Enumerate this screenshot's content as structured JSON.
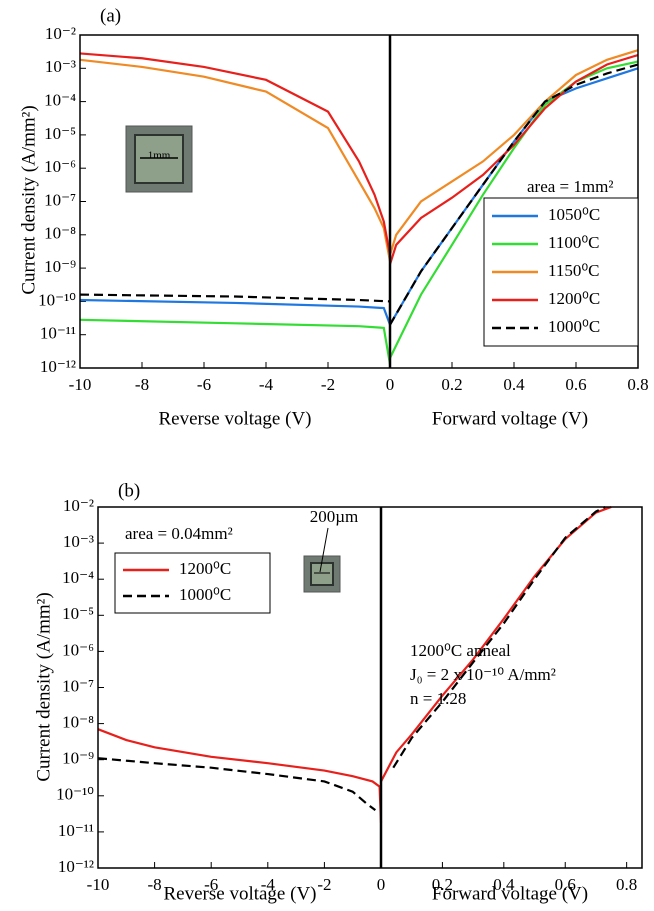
{
  "chart_data": [
    {
      "type": "line",
      "title": "(a)",
      "ylabel": "Current density (A/mm²)",
      "yscale": "log",
      "ylim": [
        1e-12,
        0.01
      ],
      "yticks": [
        {
          "value": 1e-12,
          "label": "10⁻¹²"
        },
        {
          "value": 1e-11,
          "label": "10⁻¹¹"
        },
        {
          "value": 1e-10,
          "label": "10⁻¹⁰"
        },
        {
          "value": 1e-09,
          "label": "10⁻⁹"
        },
        {
          "value": 1e-08,
          "label": "10⁻⁸"
        },
        {
          "value": 1e-07,
          "label": "10⁻⁷"
        },
        {
          "value": 1e-06,
          "label": "10⁻⁶"
        },
        {
          "value": 1e-05,
          "label": "10⁻⁵"
        },
        {
          "value": 0.0001,
          "label": "10⁻⁴"
        },
        {
          "value": 0.001,
          "label": "10⁻³"
        },
        {
          "value": 0.01,
          "label": "10⁻²"
        }
      ],
      "reverse_axis": {
        "xlabel": "Reverse voltage (V)",
        "xlim": [
          -10,
          0
        ],
        "xticks": [
          -10,
          -8,
          -6,
          -4,
          -2,
          0
        ]
      },
      "forward_axis": {
        "xlabel": "Forward voltage (V)",
        "xlim": [
          0,
          0.8
        ],
        "xticks": [
          0.2,
          0.4,
          0.6,
          0.8
        ]
      },
      "annotations": [
        "area = 1mm²",
        "1mm"
      ],
      "series": [
        {
          "name": "1050⁰C",
          "color": "#1f77e0",
          "dash": false,
          "reverse": {
            "x": [
              -10,
              -5,
              -1,
              -0.2,
              0
            ],
            "values": [
              1.1e-10,
              9e-11,
              7e-11,
              6.3e-11,
              2e-11
            ]
          },
          "forward": {
            "x": [
              0,
              0.1,
              0.2,
              0.3,
              0.4,
              0.5,
              0.6,
              0.7,
              0.8
            ],
            "values": [
              2e-11,
              8e-10,
              1.6e-08,
              3.2e-07,
              6.3e-06,
              0.0001,
              0.00025,
              0.0005,
              0.001
            ]
          }
        },
        {
          "name": "1100⁰C",
          "color": "#33dd33",
          "dash": false,
          "reverse": {
            "x": [
              -10,
              -5,
              -1,
              -0.2,
              0
            ],
            "values": [
              2.8e-11,
              2.2e-11,
              1.8e-11,
              1.6e-11,
              1.3e-12
            ]
          },
          "forward": {
            "x": [
              0,
              0.1,
              0.2,
              0.3,
              0.4,
              0.5,
              0.6,
              0.7,
              0.8
            ],
            "values": [
              2e-12,
              1.6e-10,
              5e-09,
              1.6e-07,
              4e-06,
              8e-05,
              0.0004,
              0.001,
              0.0016
            ]
          }
        },
        {
          "name": "1150⁰C",
          "color": "#f08a24",
          "dash": false,
          "reverse": {
            "x": [
              -10,
              -8,
              -6,
              -4,
              -2,
              -1,
              -0.5,
              -0.2,
              0
            ],
            "values": [
              0.0018,
              0.0011,
              0.00056,
              0.0002,
              1.6e-05,
              4e-07,
              6.3e-08,
              1.6e-08,
              1.6e-09
            ]
          },
          "forward": {
            "x": [
              0,
              0.02,
              0.1,
              0.2,
              0.3,
              0.4,
              0.5,
              0.6,
              0.7,
              0.8
            ],
            "values": [
              2.5e-09,
              1e-08,
              1e-07,
              4e-07,
              1.6e-06,
              1e-05,
              0.0001,
              0.00063,
              0.0018,
              0.0035
            ]
          }
        },
        {
          "name": "1200⁰C",
          "color": "#e8201c",
          "dash": false,
          "reverse": {
            "x": [
              -10,
              -8,
              -6,
              -4,
              -2,
              -1,
              -0.5,
              -0.2,
              0
            ],
            "values": [
              0.0028,
              0.002,
              0.0011,
              0.00045,
              5e-05,
              1.6e-06,
              1.6e-07,
              2.5e-08,
              2.5e-09
            ]
          },
          "forward": {
            "x": [
              0,
              0.02,
              0.1,
              0.2,
              0.3,
              0.4,
              0.5,
              0.6,
              0.7,
              0.8
            ],
            "values": [
              1.3e-09,
              5e-09,
              3.2e-08,
              1.3e-07,
              6.3e-07,
              5e-06,
              6.3e-05,
              0.0004,
              0.0013,
              0.0025
            ]
          }
        },
        {
          "name": "1000⁰C",
          "color": "#000000",
          "dash": true,
          "reverse": {
            "x": [
              -10,
              -5,
              -1,
              0
            ],
            "values": [
              1.6e-10,
              1.4e-10,
              1.1e-10,
              1e-10
            ]
          },
          "forward": {
            "x": [
              0,
              0.1,
              0.2,
              0.3,
              0.4,
              0.5,
              0.6,
              0.7,
              0.8
            ],
            "values": [
              2e-11,
              8e-10,
              1.6e-08,
              3.2e-07,
              6.3e-06,
              0.0001,
              0.00032,
              0.0007,
              0.0013
            ]
          }
        }
      ]
    },
    {
      "type": "line",
      "title": "(b)",
      "ylabel": "Current density (A/mm²)",
      "yscale": "log",
      "ylim": [
        1e-12,
        0.01
      ],
      "yticks": [
        {
          "value": 1e-12,
          "label": "10⁻¹²"
        },
        {
          "value": 1e-11,
          "label": "10⁻¹¹"
        },
        {
          "value": 1e-10,
          "label": "10⁻¹⁰"
        },
        {
          "value": 1e-09,
          "label": "10⁻⁹"
        },
        {
          "value": 1e-08,
          "label": "10⁻⁸"
        },
        {
          "value": 1e-07,
          "label": "10⁻⁷"
        },
        {
          "value": 1e-06,
          "label": "10⁻⁶"
        },
        {
          "value": 1e-05,
          "label": "10⁻⁵"
        },
        {
          "value": 0.0001,
          "label": "10⁻⁴"
        },
        {
          "value": 0.001,
          "label": "10⁻³"
        },
        {
          "value": 0.01,
          "label": "10⁻²"
        }
      ],
      "reverse_axis": {
        "xlabel": "Reverse voltage (V)",
        "xlim": [
          -10,
          0
        ],
        "xticks": [
          -10,
          -8,
          -6,
          -4,
          -2,
          0
        ]
      },
      "forward_axis": {
        "xlabel": "Forward voltage (V)",
        "xlim": [
          0,
          0.85
        ],
        "xticks": [
          0.2,
          0.4,
          0.6,
          0.8
        ]
      },
      "annotations": [
        "area = 0.04mm²",
        "200µm"
      ],
      "fit_note": {
        "color": "#e8201c",
        "lines": [
          "1200⁰C anneal",
          "J₀ = 2 x 10⁻¹⁰ A/mm²",
          "n = 1.28"
        ]
      },
      "series": [
        {
          "name": "1200⁰C",
          "color": "#e8201c",
          "dash": false,
          "reverse": {
            "x": [
              -10,
              -9,
              -8,
              -6,
              -4,
              -2,
              -1,
              -0.3,
              -0.05,
              0
            ],
            "values": [
              7e-09,
              3.5e-09,
              2.2e-09,
              1.2e-09,
              8e-10,
              5e-10,
              3.5e-10,
              2.5e-10,
              1.8e-10,
              1.8e-11
            ]
          },
          "forward": {
            "x": [
              0,
              0.05,
              0.1,
              0.2,
              0.3,
              0.4,
              0.5,
              0.6,
              0.7,
              0.75
            ],
            "values": [
              2.5e-10,
              1.6e-09,
              5e-09,
              6e-08,
              6e-07,
              8e-06,
              0.00012,
              0.0013,
              0.007,
              0.01
            ]
          }
        },
        {
          "name": "1000⁰C",
          "color": "#000000",
          "dash": true,
          "reverse": {
            "x": [
              -10,
              -8,
              -6,
              -4,
              -2,
              -1,
              -0.5,
              -0.2
            ],
            "values": [
              1.1e-09,
              8e-10,
              6e-10,
              4e-10,
              2.5e-10,
              1.3e-10,
              6e-11,
              4e-11
            ]
          },
          "forward": {
            "x": [
              0.04,
              0.1,
              0.2,
              0.3,
              0.4,
              0.5,
              0.6,
              0.7,
              0.73
            ],
            "values": [
              6e-10,
              4e-09,
              4e-08,
              5e-07,
              6e-06,
              0.0001,
              0.0014,
              0.0075,
              0.01
            ]
          }
        }
      ]
    }
  ]
}
